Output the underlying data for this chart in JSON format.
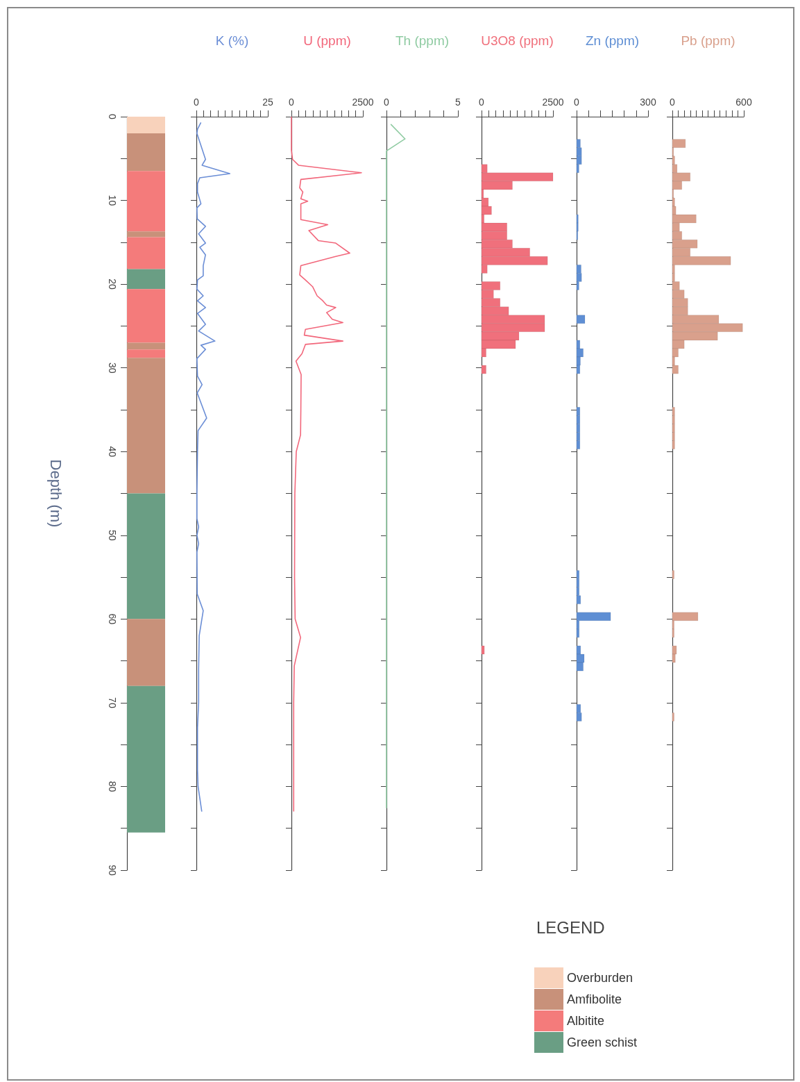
{
  "chart_data": [
    {
      "type": "bar",
      "stacked": true,
      "categories": [
        null
      ],
      "ylabel": "Depth (m)",
      "ylim": [
        90,
        0
      ],
      "yticks": [
        0,
        {
          "value": 5,
          "label": null
        },
        10,
        {
          "value": 15,
          "label": null
        },
        20,
        {
          "value": 25,
          "label": null
        },
        30,
        {
          "value": 35,
          "label": null
        },
        40,
        {
          "value": 45,
          "label": null
        },
        50,
        {
          "value": 55,
          "label": null
        },
        60,
        {
          "value": 65,
          "label": null
        },
        70,
        {
          "value": 75,
          "label": null
        },
        80,
        {
          "value": 85,
          "label": null
        },
        90
      ],
      "tick_labels": "y",
      "legend": "bottom",
      "legend_title": "LEGEND",
      "series": [
        {
          "name": "Overburden",
          "color": "#f8d2bb",
          "values": [
            2
          ]
        },
        {
          "name": "Amfibolite",
          "color": "#c8917a",
          "values": [
            4.5
          ]
        },
        {
          "name": "Albitite",
          "color": "#f47b7b",
          "values": [
            7.2
          ]
        },
        {
          "color": "#c8917a",
          "values": [
            0.7
          ]
        },
        {
          "color": "#f47b7b",
          "values": [
            3.8
          ]
        },
        {
          "name": "Green schist",
          "color": "#6a9e84",
          "values": [
            2.4
          ]
        },
        {
          "color": "#f47b7b",
          "values": [
            6.4
          ]
        },
        {
          "color": "#c8917a",
          "values": [
            0.8
          ]
        },
        {
          "color": "#f47b7b",
          "values": [
            1
          ]
        },
        {
          "color": "#c8917a",
          "values": [
            16.2
          ]
        },
        {
          "color": "#6a9e84",
          "values": [
            15
          ]
        },
        {
          "color": "#c8917a",
          "values": [
            8
          ]
        },
        {
          "color": "#6a9e84",
          "values": [
            17.5
          ]
        }
      ]
    },
    {
      "type": "line",
      "orientation": "horizontal",
      "xlabel": "K (%)",
      "marker": "none",
      "tick_labels": "x",
      "xlim": [
        0,
        25
      ],
      "xticks": [
        0,
        {
          "value": 2.5,
          "label": null
        },
        {
          "value": 5,
          "label": null
        },
        {
          "value": 7.5,
          "label": null
        },
        {
          "value": 10,
          "label": null
        },
        {
          "value": 12.5,
          "label": null
        },
        {
          "value": 15,
          "label": null
        },
        {
          "value": 17.5,
          "label": null
        },
        {
          "value": 20,
          "label": null
        },
        {
          "value": 22.5,
          "label": null
        },
        25
      ],
      "ylim": [
        90,
        0
      ],
      "yticks": [
        0,
        {
          "value": 5,
          "label": null
        },
        10,
        {
          "value": 15,
          "label": null
        },
        20,
        {
          "value": 25,
          "label": null
        },
        30,
        {
          "value": 35,
          "label": null
        },
        40,
        {
          "value": 45,
          "label": null
        },
        50,
        {
          "value": 55,
          "label": null
        },
        60,
        {
          "value": 65,
          "label": null
        },
        70,
        {
          "value": 75,
          "label": null
        },
        80,
        {
          "value": 85,
          "label": null
        },
        90
      ],
      "x": [
        0.7,
        1.5,
        2.0,
        5.1,
        5.8,
        6.8,
        7.3,
        8.0,
        9.0,
        10.4,
        10.9,
        12.2,
        13.1,
        14.0,
        15.1,
        15.6,
        16.5,
        17.8,
        19.0,
        19.5,
        20.6,
        21.4,
        22.0,
        22.8,
        23.5,
        24.8,
        25.6,
        26.8,
        27.3,
        27.8,
        28.9,
        31,
        32,
        33,
        36.0,
        37.5,
        40,
        45,
        48,
        49,
        50,
        51,
        52,
        57,
        59,
        62,
        66,
        70,
        73,
        78,
        80,
        83
      ],
      "series": [
        {
          "color": "#6b8ed6",
          "values": [
            1.6,
            0.4,
            0.2,
            3.2,
            2.0,
            11.7,
            1.2,
            0.4,
            0.4,
            1.6,
            0.2,
            0.3,
            3.2,
            0.8,
            3.2,
            1.2,
            3.2,
            2.4,
            2.4,
            0.4,
            0.2,
            2.4,
            0.4,
            3.2,
            0.4,
            3.2,
            0.8,
            6.5,
            1.6,
            3.2,
            0.2,
            0.4,
            2,
            0.3,
            3.6,
            0.6,
            0.4,
            0.2,
            0.2,
            0.8,
            0.2,
            0.8,
            0.2,
            0.3,
            2.4,
            1.0,
            0.8,
            0.8,
            0.4,
            0.4,
            0.6,
            1.9
          ]
        }
      ]
    },
    {
      "type": "line",
      "orientation": "horizontal",
      "xlabel": "U (ppm)",
      "marker": "none",
      "tick_labels": "x",
      "xlim": [
        0,
        2500
      ],
      "xticks": [
        0,
        {
          "value": 250,
          "label": null
        },
        {
          "value": 500,
          "label": null
        },
        {
          "value": 750,
          "label": null
        },
        {
          "value": 1000,
          "label": null
        },
        {
          "value": 1250,
          "label": null
        },
        {
          "value": 1500,
          "label": null
        },
        {
          "value": 1750,
          "label": null
        },
        {
          "value": 2000,
          "label": null
        },
        {
          "value": 2250,
          "label": null
        },
        2500
      ],
      "ylim": [
        90,
        0
      ],
      "yticks": [
        0,
        {
          "value": 5,
          "label": null
        },
        10,
        {
          "value": 15,
          "label": null
        },
        20,
        {
          "value": 25,
          "label": null
        },
        30,
        {
          "value": 35,
          "label": null
        },
        40,
        {
          "value": 45,
          "label": null
        },
        50,
        {
          "value": 55,
          "label": null
        },
        60,
        {
          "value": 65,
          "label": null
        },
        70,
        {
          "value": 75,
          "label": null
        },
        80,
        {
          "value": 85,
          "label": null
        },
        90
      ],
      "x": [
        0,
        4,
        5.1,
        5.8,
        6.7,
        7.5,
        8.5,
        9.0,
        9.8,
        10.1,
        10.4,
        12.3,
        12.9,
        13.6,
        14.8,
        15.1,
        16.3,
        16.7,
        17.8,
        18.9,
        19.5,
        20.3,
        21.4,
        22.0,
        22.5,
        22.8,
        23.4,
        24.2,
        24.6,
        25.4,
        26.1,
        26.8,
        27.2,
        28.3,
        29.2,
        30.8,
        35,
        38,
        40,
        45,
        55,
        60,
        62.2,
        65.6,
        70,
        75,
        83
      ],
      "series": [
        {
          "color": "#f2677b",
          "values": [
            0,
            0,
            40,
            250,
            2450,
            330,
            290,
            400,
            330,
            570,
            330,
            330,
            1270,
            610,
            940,
            1550,
            2040,
            1550,
            330,
            290,
            490,
            740,
            900,
            1100,
            1230,
            1550,
            1230,
            1430,
            1800,
            490,
            450,
            1800,
            490,
            370,
            160,
            340,
            330,
            320,
            170,
            120,
            110,
            130,
            320,
            100,
            80,
            80,
            80
          ]
        }
      ]
    },
    {
      "type": "line",
      "orientation": "horizontal",
      "xlabel": "Th (ppm)",
      "marker": "none",
      "tick_labels": "x",
      "xlim": [
        0,
        5
      ],
      "xticks": [
        0,
        {
          "value": 1,
          "label": null
        },
        {
          "value": 2,
          "label": null
        },
        {
          "value": 3,
          "label": null
        },
        {
          "value": 4,
          "label": null
        },
        5
      ],
      "ylim": [
        90,
        0
      ],
      "yticks": [
        0,
        {
          "value": 5,
          "label": null
        },
        10,
        {
          "value": 15,
          "label": null
        },
        20,
        {
          "value": 25,
          "label": null
        },
        30,
        {
          "value": 35,
          "label": null
        },
        40,
        {
          "value": 45,
          "label": null
        },
        50,
        {
          "value": 55,
          "label": null
        },
        60,
        {
          "value": 65,
          "label": null
        },
        70,
        {
          "value": 75,
          "label": null
        },
        80,
        {
          "value": 85,
          "label": null
        },
        90
      ],
      "x": [
        0.9,
        2.65,
        4.1,
        82.6
      ],
      "series": [
        {
          "color": "#8fcba2",
          "values": [
            0.3,
            1.3,
            0,
            0
          ]
        }
      ]
    },
    {
      "type": "bar",
      "orientation": "horizontal",
      "xlabel": "U3O8 (ppm)",
      "tick_labels": "x",
      "xlim": [
        0,
        2500
      ],
      "xticks": [
        0,
        {
          "value": 250,
          "label": null
        },
        {
          "value": 500,
          "label": null
        },
        {
          "value": 750,
          "label": null
        },
        {
          "value": 1000,
          "label": null
        },
        {
          "value": 1250,
          "label": null
        },
        {
          "value": 1500,
          "label": null
        },
        {
          "value": 1750,
          "label": null
        },
        {
          "value": 2000,
          "label": null
        },
        {
          "value": 2250,
          "label": null
        },
        2500
      ],
      "ylim": [
        90,
        0
      ],
      "yticks": [
        0,
        {
          "value": 5,
          "label": null
        },
        10,
        {
          "value": 15,
          "label": null
        },
        20,
        {
          "value": 25,
          "label": null
        },
        30,
        {
          "value": 35,
          "label": null
        },
        40,
        {
          "value": 45,
          "label": null
        },
        50,
        {
          "value": 55,
          "label": null
        },
        60,
        {
          "value": 65,
          "label": null
        },
        70,
        {
          "value": 75,
          "label": null
        },
        80,
        {
          "value": 85,
          "label": null
        },
        90
      ],
      "x": [
        6.2,
        7.2,
        8.2,
        9.2,
        10.2,
        11.2,
        12.2,
        13.2,
        14.2,
        15.2,
        16.2,
        17.2,
        18.2,
        20.2,
        21.2,
        22.2,
        23.2,
        24.2,
        25.2,
        26.2,
        27.2,
        28.2,
        30.2,
        63.7
      ],
      "series": [
        {
          "color": "#f0707c",
          "values": [
            200,
            2500,
            1080,
            70,
            240,
            350,
            90,
            890,
            890,
            1080,
            1690,
            2310,
            200,
            650,
            420,
            650,
            950,
            2210,
            2210,
            1310,
            1190,
            160,
            160,
            100
          ]
        }
      ]
    },
    {
      "type": "bar",
      "orientation": "horizontal",
      "xlabel": "Zn (ppm)",
      "tick_labels": "x",
      "xlim": [
        0,
        300
      ],
      "xticks": [
        0,
        {
          "value": 50,
          "label": null
        },
        {
          "value": 100,
          "label": null
        },
        {
          "value": 150,
          "label": null
        },
        {
          "value": 200,
          "label": null
        },
        {
          "value": 250,
          "label": null
        },
        300
      ],
      "ylim": [
        90,
        0
      ],
      "yticks": [
        0,
        {
          "value": 5,
          "label": null
        },
        10,
        {
          "value": 15,
          "label": null
        },
        20,
        {
          "value": 25,
          "label": null
        },
        30,
        {
          "value": 35,
          "label": null
        },
        40,
        {
          "value": 45,
          "label": null
        },
        50,
        {
          "value": 55,
          "label": null
        },
        60,
        {
          "value": 65,
          "label": null
        },
        70,
        {
          "value": 75,
          "label": null
        },
        80,
        {
          "value": 85,
          "label": null
        },
        90
      ],
      "x": [
        3.2,
        4.2,
        5.2,
        6.2,
        12.2,
        13.2,
        14.2,
        18.2,
        19.2,
        20.2,
        24.2,
        27.2,
        28.2,
        29.2,
        30.2,
        35.2,
        36.2,
        37.2,
        38.2,
        39.2,
        54.7,
        55.7,
        56.7,
        57.7,
        59.7,
        60.7,
        61.7,
        63.7,
        64.7,
        65.7,
        70.7,
        71.7
      ],
      "series": [
        {
          "color": "#5f8fd4",
          "values": [
            16,
            21,
            21,
            10,
            7,
            7,
            5,
            19,
            21,
            10,
            35,
            14,
            28,
            16,
            14,
            14,
            14,
            14,
            14,
            14,
            11,
            11,
            11,
            17,
            143,
            11,
            11,
            17,
            32,
            28,
            17,
            21
          ]
        }
      ]
    },
    {
      "type": "bar",
      "orientation": "horizontal",
      "xlabel": "Pb (ppm)",
      "tick_labels": "x",
      "xlim": [
        0,
        600
      ],
      "xticks": [
        0,
        {
          "value": 50,
          "label": null
        },
        {
          "value": 100,
          "label": null
        },
        {
          "value": 150,
          "label": null
        },
        {
          "value": 200,
          "label": null
        },
        {
          "value": 250,
          "label": null
        },
        {
          "value": 300,
          "label": null
        },
        {
          "value": 350,
          "label": null
        },
        {
          "value": 400,
          "label": null
        },
        {
          "value": 450,
          "label": null
        },
        {
          "value": 500,
          "label": null
        },
        {
          "value": 550,
          "label": null
        },
        600
      ],
      "ylim": [
        90,
        0
      ],
      "yticks": [
        0,
        {
          "value": 5,
          "label": null
        },
        10,
        {
          "value": 15,
          "label": null
        },
        20,
        {
          "value": 25,
          "label": null
        },
        30,
        {
          "value": 35,
          "label": null
        },
        40,
        {
          "value": 45,
          "label": null
        },
        50,
        {
          "value": 55,
          "label": null
        },
        60,
        {
          "value": 65,
          "label": null
        },
        70,
        {
          "value": 75,
          "label": null
        },
        80,
        {
          "value": 85,
          "label": null
        },
        90
      ],
      "x": [
        3.2,
        4.2,
        5.2,
        6.2,
        7.2,
        8.2,
        9.2,
        10.2,
        11.2,
        12.2,
        13.2,
        14.2,
        15.2,
        16.2,
        17.2,
        18.2,
        19.2,
        20.2,
        21.2,
        22.2,
        23.2,
        24.2,
        25.2,
        26.2,
        27.2,
        28.2,
        29.2,
        30.2,
        35.2,
        36.2,
        37.2,
        38.2,
        39.2,
        54.7,
        59.7,
        60.7,
        61.7,
        63.7,
        64.7,
        71.7
      ],
      "series": [
        {
          "color": "#d9a08c",
          "values": [
            110,
            10,
            20,
            40,
            150,
            80,
            10,
            20,
            30,
            200,
            60,
            80,
            210,
            150,
            490,
            20,
            20,
            60,
            100,
            130,
            130,
            390,
            590,
            380,
            100,
            50,
            20,
            50,
            20,
            20,
            20,
            20,
            20,
            15,
            215,
            15,
            15,
            35,
            25,
            15
          ]
        }
      ]
    }
  ]
}
